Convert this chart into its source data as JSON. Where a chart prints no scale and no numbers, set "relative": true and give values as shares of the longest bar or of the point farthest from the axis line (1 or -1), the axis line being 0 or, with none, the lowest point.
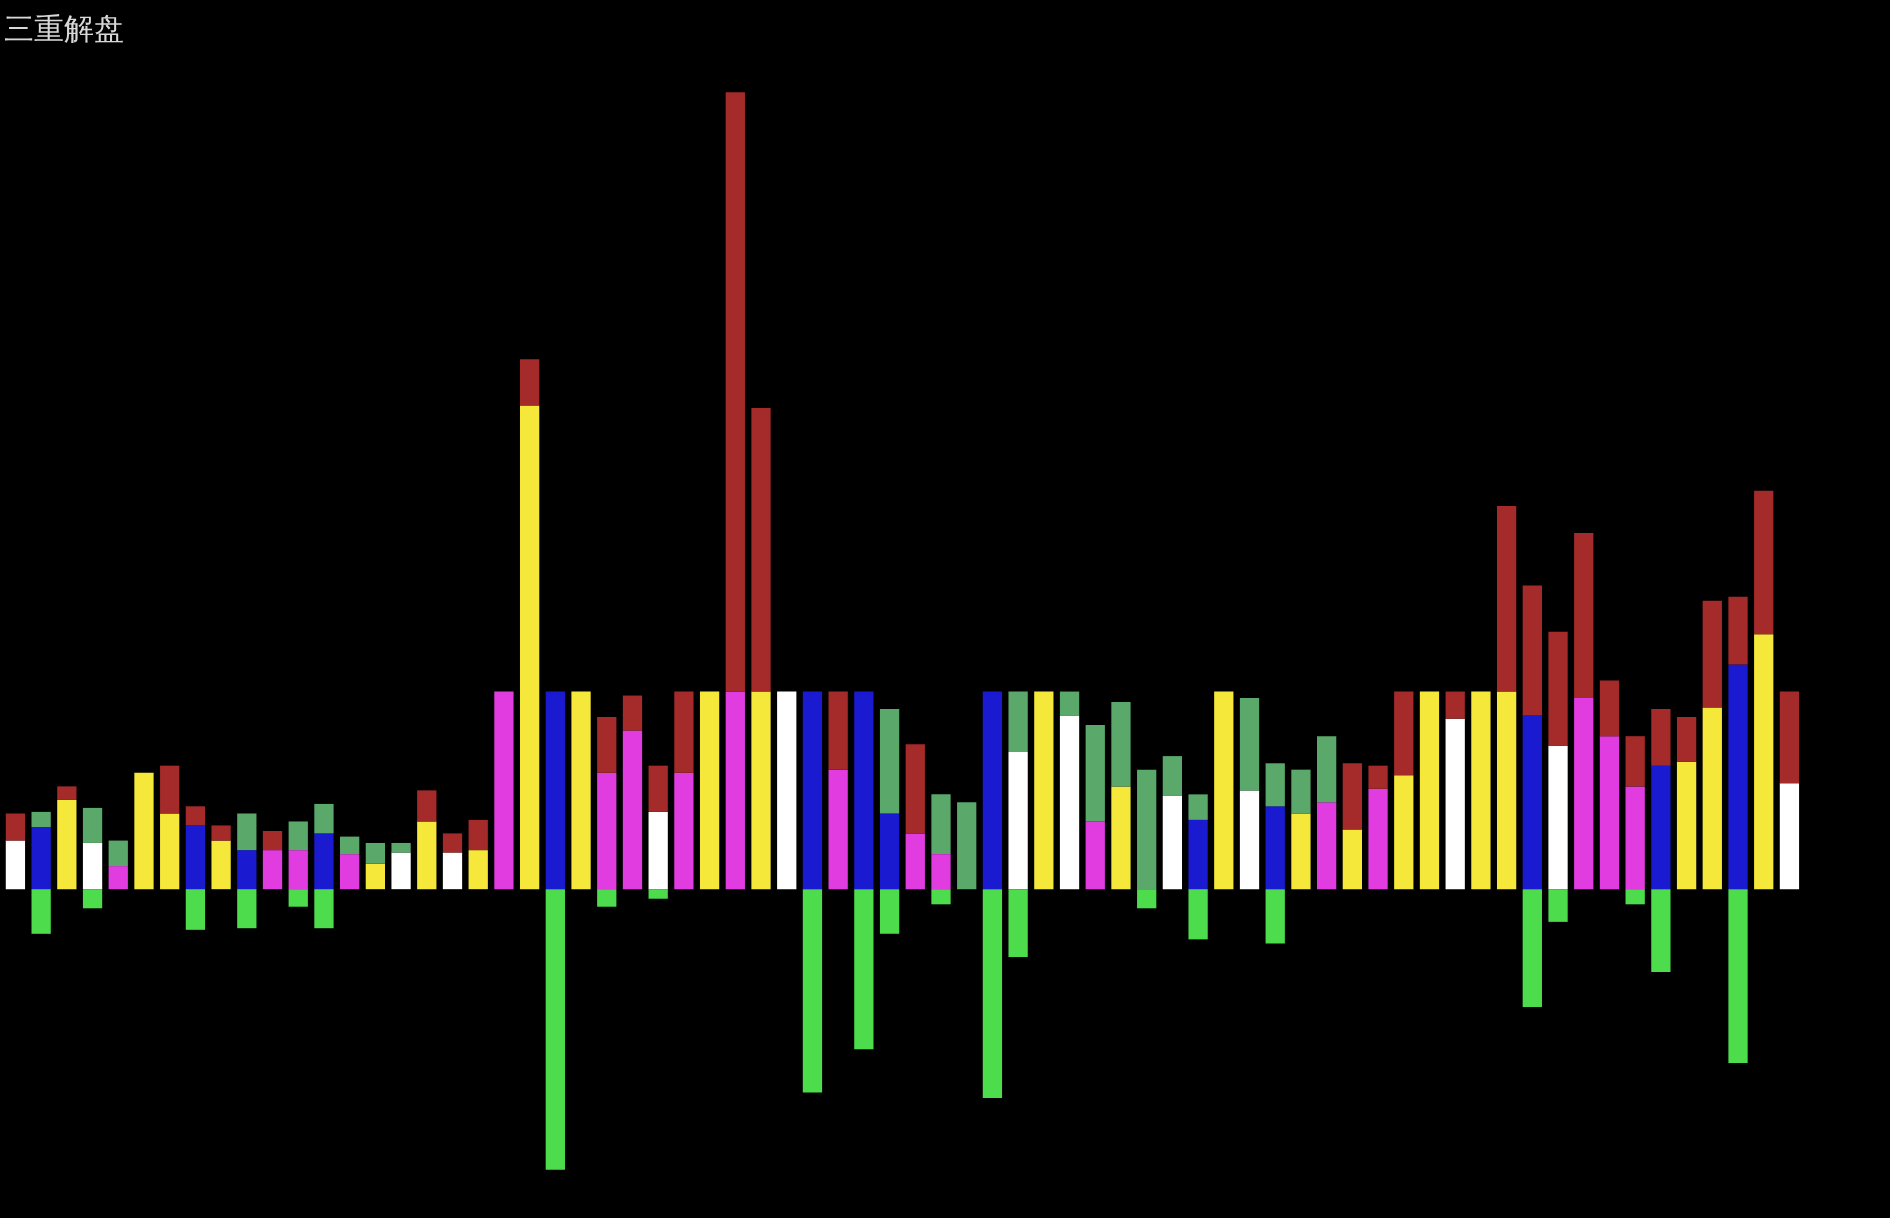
{
  "chart_data": {
    "type": "bar",
    "title": "三重解盘",
    "relative": true,
    "stacked": true,
    "categories": [
      null,
      null,
      null,
      null,
      null,
      null,
      null,
      null,
      null,
      null,
      null,
      null,
      null,
      null,
      null,
      null,
      null,
      null,
      null,
      null,
      null,
      null,
      null,
      null,
      null,
      null,
      null,
      null,
      null,
      null,
      null,
      null,
      null,
      null,
      null,
      null,
      null,
      null,
      null,
      null,
      null,
      null,
      null,
      null,
      null,
      null,
      null,
      null,
      null,
      null,
      null,
      null,
      null,
      null,
      null,
      null,
      null,
      null,
      null,
      null,
      null,
      null,
      null,
      null,
      null,
      null,
      null,
      null,
      null,
      null
    ],
    "series": [
      {
        "values": [
          0.061,
          0.078,
          0.112,
          0.058,
          0.029,
          0.146,
          0.095,
          0.08,
          0.061,
          0.049,
          0.049,
          0.049,
          0.07,
          0.044,
          0.032,
          0.046,
          0.085,
          0.046,
          0.049,
          0.248,
          0.607,
          0.248,
          0.248,
          0.146,
          0.199,
          0.097,
          0.146,
          0.248,
          0.248,
          0.248,
          0.248,
          0.248,
          0.15,
          0.248,
          0.095,
          0.07,
          0.044,
          null,
          0.248,
          0.172,
          0.248,
          0.218,
          0.085,
          0.129,
          null,
          0.117,
          0.087,
          0.248,
          0.124,
          0.104,
          0.095,
          0.109,
          0.075,
          0.126,
          0.143,
          0.248,
          0.214,
          0.248,
          0.248,
          0.218,
          0.18,
          0.24,
          0.192,
          0.129,
          0.155,
          0.16,
          0.228,
          0.282,
          0.32,
          0.133
        ],
        "colors": [
          "#ffffff",
          "#1a1ad0",
          "#f5e83a",
          "#ffffff",
          "#e03ce0",
          "#f5e83a",
          "#f5e83a",
          "#1a1ad0",
          "#f5e83a",
          "#1a1ad0",
          "#e03ce0",
          "#e03ce0",
          "#1a1ad0",
          "#e03ce0",
          "#f5e83a",
          "#ffffff",
          "#f5e83a",
          "#ffffff",
          "#f5e83a",
          "#e03ce0",
          "#f5e83a",
          "#1a1ad0",
          "#f5e83a",
          "#e03ce0",
          "#e03ce0",
          "#ffffff",
          "#e03ce0",
          "#f5e83a",
          "#e03ce0",
          "#f5e83a",
          "#ffffff",
          "#1a1ad0",
          "#e03ce0",
          "#1a1ad0",
          "#1a1ad0",
          "#e03ce0",
          "#e03ce0",
          null,
          "#1a1ad0",
          "#ffffff",
          "#f5e83a",
          "#ffffff",
          "#e03ce0",
          "#f5e83a",
          null,
          "#ffffff",
          "#1a1ad0",
          "#f5e83a",
          "#ffffff",
          "#1a1ad0",
          "#f5e83a",
          "#e03ce0",
          "#f5e83a",
          "#e03ce0",
          "#f5e83a",
          "#f5e83a",
          "#ffffff",
          "#f5e83a",
          "#f5e83a",
          "#1a1ad0",
          "#ffffff",
          "#e03ce0",
          "#e03ce0",
          "#e03ce0",
          "#1a1ad0",
          "#f5e83a",
          "#f5e83a",
          "#1a1ad0",
          "#f5e83a",
          "#ffffff"
        ]
      },
      {
        "color": "#a52a2a",
        "values": [
          0.034,
          null,
          0.017,
          null,
          null,
          null,
          0.06,
          0.024,
          0.019,
          null,
          0.024,
          null,
          null,
          null,
          null,
          null,
          0.039,
          0.024,
          0.038,
          null,
          0.058,
          null,
          null,
          0.07,
          0.044,
          0.058,
          0.102,
          null,
          0.752,
          0.356,
          null,
          null,
          0.098,
          null,
          null,
          0.112,
          null,
          null,
          null,
          null,
          null,
          null,
          null,
          null,
          null,
          null,
          null,
          null,
          null,
          null,
          null,
          null,
          0.083,
          0.029,
          0.105,
          null,
          0.034,
          null,
          0.233,
          0.163,
          0.143,
          0.207,
          0.07,
          0.063,
          0.071,
          0.056,
          0.134,
          0.085,
          0.18,
          0.115
        ]
      },
      {
        "color": "#5aa86a",
        "values": [
          null,
          0.019,
          null,
          0.044,
          0.032,
          null,
          null,
          null,
          null,
          0.046,
          null,
          0.036,
          0.037,
          0.022,
          0.026,
          0.012,
          null,
          null,
          null,
          null,
          null,
          null,
          null,
          null,
          null,
          null,
          null,
          null,
          null,
          null,
          null,
          null,
          null,
          null,
          0.131,
          null,
          0.075,
          0.109,
          null,
          0.076,
          null,
          0.03,
          0.121,
          0.106,
          0.15,
          0.05,
          0.032,
          null,
          0.116,
          0.054,
          0.055,
          0.083,
          null,
          null,
          null,
          null,
          null,
          null,
          null,
          null,
          null,
          null,
          null,
          null,
          null,
          null,
          null,
          null,
          null,
          null
        ]
      },
      {
        "color": "#4cdc4c",
        "values": [
          null,
          -0.056,
          null,
          -0.024,
          null,
          null,
          null,
          -0.051,
          null,
          -0.049,
          null,
          -0.022,
          -0.049,
          null,
          null,
          null,
          null,
          null,
          null,
          null,
          null,
          -0.352,
          null,
          -0.022,
          null,
          -0.012,
          null,
          null,
          null,
          null,
          null,
          -0.255,
          null,
          -0.201,
          -0.056,
          null,
          -0.019,
          null,
          -0.262,
          -0.085,
          null,
          null,
          null,
          null,
          -0.024,
          null,
          -0.063,
          null,
          null,
          -0.068,
          null,
          null,
          null,
          null,
          null,
          null,
          null,
          null,
          null,
          -0.148,
          -0.041,
          null,
          null,
          -0.019,
          -0.104,
          null,
          null,
          -0.218,
          null,
          null
        ]
      }
    ]
  }
}
